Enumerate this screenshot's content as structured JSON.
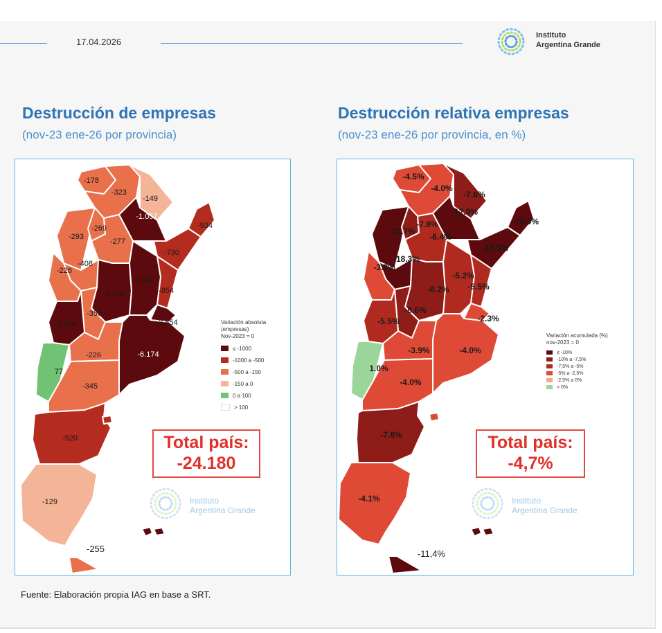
{
  "header": {
    "date": "17.04.2026",
    "logo_line1": "Instituto",
    "logo_line2": "Argentina Grande"
  },
  "left": {
    "title": "Destrucción de empresas",
    "subtitle": "(nov-23 ene-26 por provincia)",
    "legend_title": "Variación absoluta\n(empresas)\nNov-2023 = 0",
    "legend": [
      {
        "label": "≤ -1000",
        "color": "#5c0a0d"
      },
      {
        "label": "-1000 a -500",
        "color": "#b42b20"
      },
      {
        "label": "-500 a -150",
        "color": "#e8704b"
      },
      {
        "label": "-150 a 0",
        "color": "#f4b497"
      },
      {
        "label": "0 a 100",
        "color": "#71c274"
      },
      {
        "label": "> 100",
        "color": "#ffffff"
      }
    ],
    "total_label": "Total país:",
    "total_value": "-24.180",
    "values": {
      "jujuy": "-178",
      "salta": "-323",
      "formosa": "-149",
      "chaco": "-1.057",
      "misiones": "-934",
      "catamarca": "-293",
      "tucuman": "-269",
      "santiago": "-277",
      "corrientes": "-730",
      "larioja": "-408",
      "sanjuan": "-226",
      "cordoba": "-4.090",
      "santafe": "-2.542",
      "entrerios": "-854",
      "sanluis": "-350",
      "mendoza": "-5.158",
      "caba": "-2.854",
      "buenosaires": "-6.174",
      "neuquen": "77",
      "lapampa": "-226",
      "rionegro": "-345",
      "chubut": "-520",
      "santacruz": "-129",
      "tierradelfuego": "-255"
    }
  },
  "right": {
    "title": "Destrucción relativa empresas",
    "subtitle": "(nov-23 ene-26 por provincia, en %)",
    "legend_title": "Variación acumulada (%)\nnov-2023 = 0",
    "legend": [
      {
        "label": "≤ -10%",
        "color": "#5c0a0d"
      },
      {
        "label": "-10% a -7,5%",
        "color": "#8e1c18"
      },
      {
        "label": "-7,5% a -5%",
        "color": "#b02a20"
      },
      {
        "label": "-5% a -2,5%",
        "color": "#de4a36"
      },
      {
        "label": "-2,5% a 0%",
        "color": "#f4a988"
      },
      {
        "label": "> 0%",
        "color": "#9bd59a"
      }
    ],
    "total_label": "Total país:",
    "total_value": "-4,7%",
    "values": {
      "jujuy": "-4.5%",
      "salta": "-4.0%",
      "formosa": "-7.6%",
      "chaco": "-12.9%",
      "misiones": "-10.9%",
      "tucuman": "-7.8%",
      "catamarca": "-11.7%",
      "santiago": "-6.4%",
      "corrientes": "-10.3%",
      "larioja": "-18.3%",
      "sanjuan": "-3.9%",
      "santafe": "-5.2%",
      "entrerios": "-5.5%",
      "cordoba": "-8.2%",
      "sanluis": "-8.6%",
      "mendoza": "-5.5%",
      "caba": "-2.3%",
      "lapampa": "-3.9%",
      "buenosaires": "-4.0%",
      "neuquen": "1.0%",
      "rionegro": "-4.0%",
      "chubut": "-7.6%",
      "santacruz": "-4.1%",
      "tierradelfuego": "-11,4%"
    }
  },
  "watermark": {
    "line1": "Instituto",
    "line2": "Argentina Grande"
  },
  "source": "Fuente: Elaboración propia IAG en base a SRT."
}
